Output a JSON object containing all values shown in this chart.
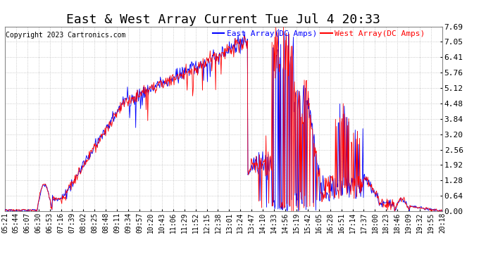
{
  "title": "East & West Array Current Tue Jul 4 20:33",
  "copyright": "Copyright 2023 Cartronics.com",
  "legend_east": "East Array(DC Amps)",
  "legend_west": "West Array(DC Amps)",
  "color_east": "#0000ff",
  "color_west": "#ff0000",
  "background_color": "#ffffff",
  "grid_color": "#bbbbbb",
  "yticks": [
    0.0,
    0.64,
    1.28,
    1.92,
    2.56,
    3.2,
    3.84,
    4.48,
    5.12,
    5.76,
    6.41,
    7.05,
    7.69
  ],
  "ylim": [
    0.0,
    7.69
  ],
  "xtick_labels": [
    "05:21",
    "05:44",
    "06:07",
    "06:30",
    "06:53",
    "07:16",
    "07:39",
    "08:02",
    "08:25",
    "08:48",
    "09:11",
    "09:34",
    "09:57",
    "10:20",
    "10:43",
    "11:06",
    "11:29",
    "11:52",
    "12:15",
    "12:38",
    "13:01",
    "13:24",
    "13:47",
    "14:10",
    "14:33",
    "14:56",
    "15:19",
    "15:42",
    "16:05",
    "16:28",
    "16:51",
    "17:14",
    "17:37",
    "18:00",
    "18:23",
    "18:46",
    "19:09",
    "19:32",
    "19:55",
    "20:18"
  ],
  "title_fontsize": 13,
  "axis_fontsize": 7,
  "copyright_fontsize": 7,
  "legend_fontsize": 8
}
